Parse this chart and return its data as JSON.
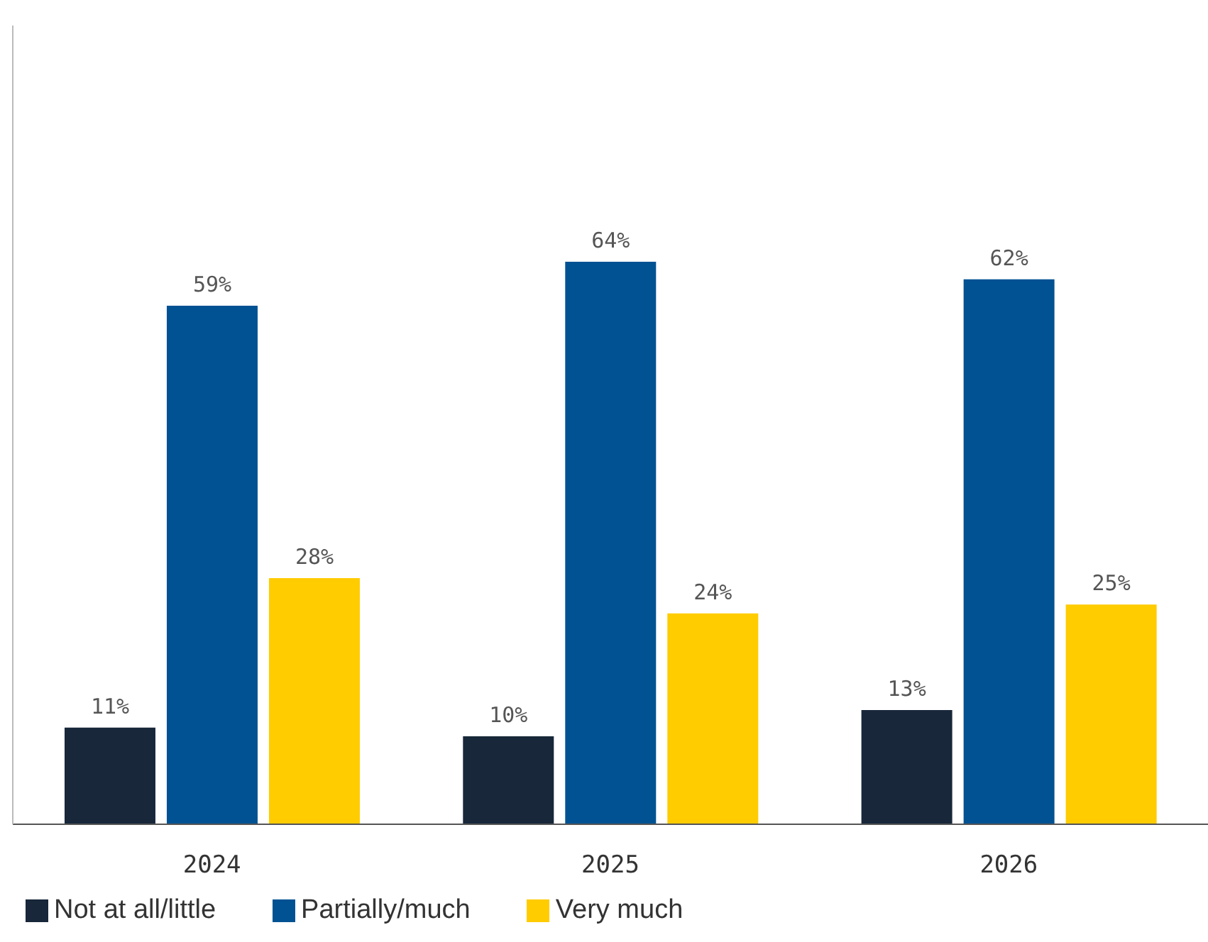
{
  "chart_data": {
    "type": "bar",
    "categories": [
      "2024",
      "2025",
      "2026"
    ],
    "series": [
      {
        "name": "Not at all/little",
        "color": "#18273a",
        "values": [
          11,
          10,
          13
        ],
        "value_labels": [
          "11%",
          "10%",
          "13%"
        ]
      },
      {
        "name": "Partially/much",
        "color": "#005293",
        "values": [
          59,
          64,
          62
        ],
        "value_labels": [
          "59%",
          "64%",
          "62%"
        ]
      },
      {
        "name": "Very much",
        "color": "#ffcc00",
        "values": [
          28,
          24,
          25
        ],
        "value_labels": [
          "28%",
          "24%",
          "25%"
        ]
      }
    ],
    "legend": "bottom left",
    "grid": false
  }
}
